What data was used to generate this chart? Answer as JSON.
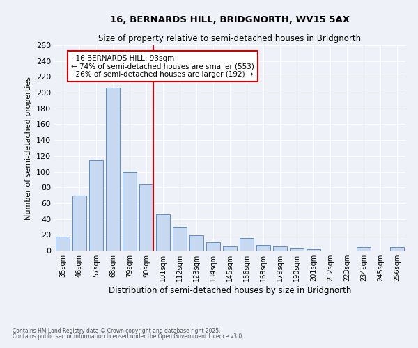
{
  "title1": "16, BERNARDS HILL, BRIDGNORTH, WV15 5AX",
  "title2": "Size of property relative to semi-detached houses in Bridgnorth",
  "xlabel": "Distribution of semi-detached houses by size in Bridgnorth",
  "ylabel": "Number of semi-detached properties",
  "categories": [
    "35sqm",
    "46sqm",
    "57sqm",
    "68sqm",
    "79sqm",
    "90sqm",
    "101sqm",
    "112sqm",
    "123sqm",
    "134sqm",
    "145sqm",
    "156sqm",
    "168sqm",
    "179sqm",
    "190sqm",
    "201sqm",
    "212sqm",
    "223sqm",
    "234sqm",
    "245sqm",
    "256sqm"
  ],
  "values": [
    18,
    70,
    115,
    206,
    100,
    84,
    46,
    30,
    19,
    11,
    5,
    16,
    7,
    5,
    3,
    2,
    0,
    0,
    4,
    0,
    4
  ],
  "bar_color": "#c6d9f0",
  "bar_edge_color": "#5b8dc8",
  "property_label": "16 BERNARDS HILL: 93sqm",
  "pct_smaller": 74,
  "n_smaller": 553,
  "pct_larger": 26,
  "n_larger": 192,
  "vline_color": "#cc0000",
  "annotation_box_color": "#cc0000",
  "ylim": [
    0,
    260
  ],
  "yticks": [
    0,
    20,
    40,
    60,
    80,
    100,
    120,
    140,
    160,
    180,
    200,
    220,
    240,
    260
  ],
  "footnote1": "Contains HM Land Registry data © Crown copyright and database right 2025.",
  "footnote2": "Contains public sector information licensed under the Open Government Licence v3.0.",
  "bg_color": "#eef2f8",
  "grid_color": "#ffffff",
  "vline_x_index": 5.43
}
